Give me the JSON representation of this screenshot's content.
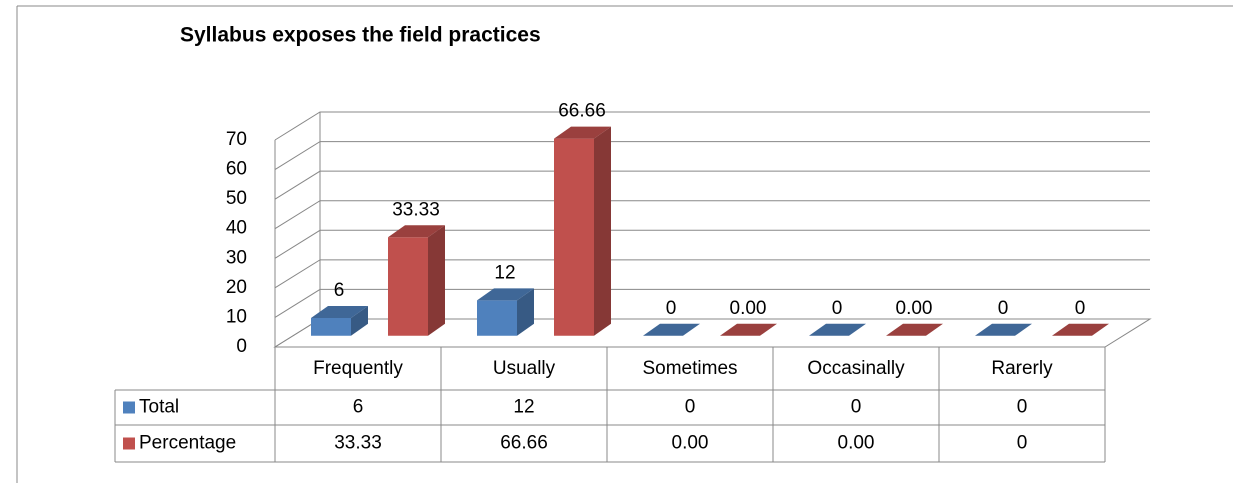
{
  "chart_data": {
    "type": "bar3d",
    "title": "Syllabus exposes the field practices",
    "categories": [
      "Frequently",
      "Usually",
      "Sometimes",
      "Occasinally",
      "Rarerly"
    ],
    "series": [
      {
        "name": "Total",
        "color": "#4f81bd",
        "values": [
          6,
          12,
          0,
          0,
          0
        ]
      },
      {
        "name": "Percentage",
        "color": "#c0504d",
        "values": [
          33.33,
          66.66,
          0,
          0,
          0
        ],
        "value_labels": [
          "33.33",
          "66.66",
          "0.00",
          "0.00",
          "0"
        ]
      }
    ],
    "ylim": [
      0,
      70
    ],
    "yticks": [
      0,
      10,
      20,
      30,
      40,
      50,
      60,
      70
    ],
    "grid": true,
    "data_table": true
  }
}
